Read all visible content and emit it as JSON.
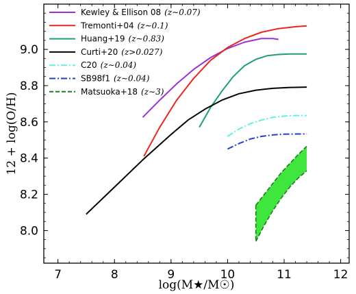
{
  "chart_data": {
    "type": "line",
    "xlabel": "log(M★/M☉)",
    "ylabel": "12 + log(O/H)",
    "xlim": [
      6.75,
      12.15
    ],
    "ylim": [
      7.82,
      9.25
    ],
    "grid": false,
    "legend_position": "upper-left",
    "x_ticks": [
      "7",
      "8",
      "9",
      "10",
      "11",
      "12"
    ],
    "y_ticks": [
      "8.0",
      "8.2",
      "8.4",
      "8.6",
      "8.8",
      "9.0"
    ],
    "x_tick_values": [
      7,
      8,
      9,
      10,
      11,
      12
    ],
    "y_tick_values": [
      8.0,
      8.2,
      8.4,
      8.6,
      8.8,
      9.0
    ],
    "series": [
      {
        "name": "Kewley & Ellison 08",
        "z": "(z∼0.07)",
        "color": "#9b30d9",
        "dash": "solid",
        "x": [
          8.5,
          8.8,
          9.1,
          9.4,
          9.7,
          10.0,
          10.3,
          10.6,
          10.8,
          10.9
        ],
        "y": [
          8.625,
          8.72,
          8.81,
          8.89,
          8.955,
          9.005,
          9.04,
          9.06,
          9.06,
          9.055
        ]
      },
      {
        "name": "Tremonti+04",
        "z": "(z∼0.1)",
        "color": "#e8261c",
        "dash": "solid",
        "x": [
          8.52,
          8.8,
          9.1,
          9.4,
          9.7,
          10.0,
          10.3,
          10.6,
          10.9,
          11.2,
          11.4
        ],
        "y": [
          8.41,
          8.57,
          8.72,
          8.84,
          8.94,
          9.01,
          9.06,
          9.095,
          9.115,
          9.125,
          9.13
        ]
      },
      {
        "name": "Huang+19",
        "z": "(z∼0.83)",
        "color": "#1e9e74",
        "dash": "solid",
        "x": [
          9.5,
          9.7,
          9.9,
          10.1,
          10.3,
          10.5,
          10.7,
          10.9,
          11.1,
          11.4
        ],
        "y": [
          8.57,
          8.68,
          8.77,
          8.85,
          8.91,
          8.945,
          8.965,
          8.972,
          8.975,
          8.975
        ]
      },
      {
        "name": "Curti+20",
        "z": "(z>0.027)",
        "color": "#000000",
        "dash": "solid",
        "x": [
          7.5,
          8.0,
          8.5,
          9.0,
          9.3,
          9.6,
          9.9,
          10.2,
          10.5,
          10.8,
          11.1,
          11.4
        ],
        "y": [
          8.09,
          8.24,
          8.39,
          8.53,
          8.61,
          8.67,
          8.72,
          8.755,
          8.775,
          8.785,
          8.79,
          8.792
        ]
      },
      {
        "name": "C20",
        "z": "(z∼0.04)",
        "color": "#5ff2e0",
        "dash": "dashdot",
        "x": [
          10.0,
          10.2,
          10.4,
          10.6,
          10.8,
          11.0,
          11.2,
          11.4
        ],
        "y": [
          8.52,
          8.56,
          8.59,
          8.61,
          8.625,
          8.632,
          8.635,
          8.635
        ]
      },
      {
        "name": "SB98f1",
        "z": "(z∼0.04)",
        "color": "#1d3fd0",
        "dash": "dashdot",
        "x": [
          10.0,
          10.2,
          10.4,
          10.6,
          10.8,
          11.0,
          11.2,
          11.4
        ],
        "y": [
          8.45,
          8.48,
          8.505,
          8.52,
          8.528,
          8.532,
          8.533,
          8.533
        ]
      }
    ],
    "band": {
      "name": "Matsuoka+18",
      "z": "(z∼3)",
      "fill": "#3ee63e",
      "edge": "#1e7a1e",
      "dash": "dashed",
      "x": [
        10.5,
        10.65,
        10.8,
        10.95,
        11.1,
        11.25,
        11.4
      ],
      "upper": [
        8.14,
        8.2,
        8.26,
        8.32,
        8.37,
        8.42,
        8.465
      ],
      "lower": [
        7.94,
        8.03,
        8.11,
        8.18,
        8.24,
        8.29,
        8.33
      ]
    }
  }
}
